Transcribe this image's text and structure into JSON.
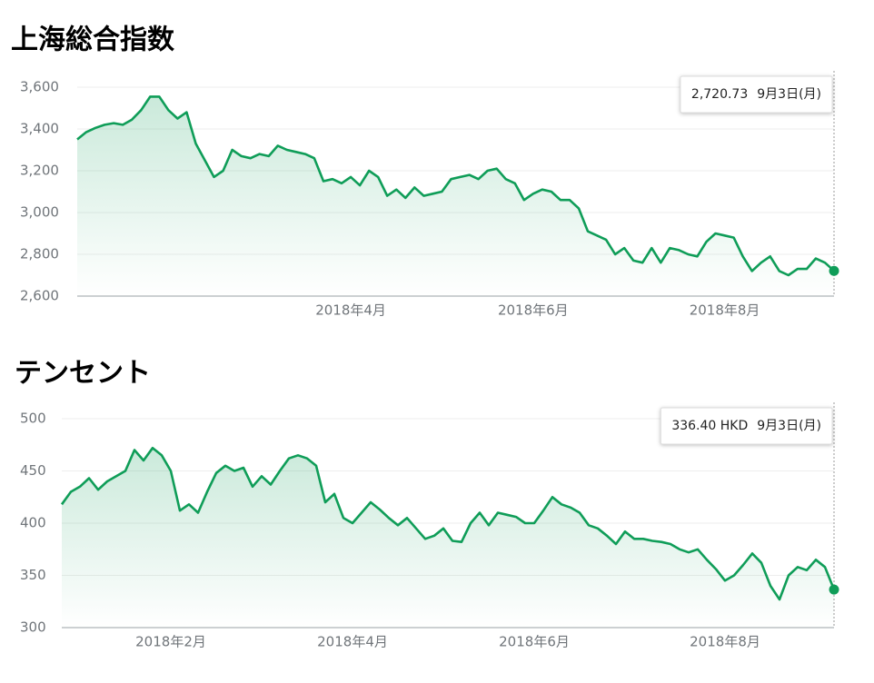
{
  "chart_data": [
    {
      "type": "line",
      "title": "上海総合指数",
      "color": "#0f9d58",
      "grid": true,
      "categories": [
        null,
        null,
        null,
        null,
        null,
        null,
        null,
        null,
        null,
        null,
        null,
        null,
        null,
        null,
        null,
        null,
        null,
        null,
        null,
        null,
        null,
        null,
        null,
        null,
        null,
        null,
        null,
        null,
        null,
        null,
        "2018年4月",
        null,
        null,
        null,
        null,
        null,
        null,
        null,
        null,
        null,
        null,
        null,
        null,
        null,
        null,
        null,
        null,
        null,
        null,
        null,
        "2018年6月",
        null,
        null,
        null,
        null,
        null,
        null,
        null,
        null,
        null,
        null,
        null,
        null,
        null,
        null,
        null,
        null,
        null,
        null,
        null,
        null,
        "2018年8月",
        null,
        null,
        null,
        null,
        null,
        null,
        null,
        null,
        null,
        null,
        null,
        null
      ],
      "values": [
        3350,
        3385,
        3405,
        3420,
        3428,
        3420,
        3445,
        3490,
        3555,
        3555,
        3490,
        3450,
        3480,
        3330,
        3250,
        3170,
        3200,
        3300,
        3270,
        3260,
        3280,
        3270,
        3320,
        3300,
        3290,
        3280,
        3260,
        3150,
        3160,
        3140,
        3170,
        3130,
        3200,
        3170,
        3080,
        3110,
        3070,
        3120,
        3080,
        3090,
        3100,
        3160,
        3170,
        3180,
        3160,
        3200,
        3210,
        3160,
        3140,
        3060,
        3090,
        3110,
        3100,
        3060,
        3060,
        3020,
        2910,
        2890,
        2870,
        2800,
        2830,
        2770,
        2760,
        2830,
        2760,
        2830,
        2820,
        2800,
        2790,
        2860,
        2900,
        2890,
        2880,
        2790,
        2720,
        2760,
        2790,
        2720,
        2700,
        2730,
        2730,
        2780,
        2760,
        2720.73
      ],
      "ylim": [
        2600,
        3600
      ],
      "yticks": [
        {
          "value": 2600,
          "label": "2,600"
        },
        {
          "value": 2800,
          "label": "2,800"
        },
        {
          "value": 3000,
          "label": "3,000"
        },
        {
          "value": 3200,
          "label": "3,200"
        },
        {
          "value": 3400,
          "label": "3,400"
        },
        {
          "value": 3600,
          "label": "3,600"
        }
      ],
      "annotations": [
        {
          "text": "2,720.73",
          "date": "9月3日(月)"
        }
      ]
    },
    {
      "type": "line",
      "title": "テンセント",
      "color": "#0f9d58",
      "grid": true,
      "categories": [
        null,
        null,
        null,
        null,
        null,
        null,
        null,
        null,
        null,
        null,
        null,
        null,
        "2018年2月",
        null,
        null,
        null,
        null,
        null,
        null,
        null,
        null,
        null,
        null,
        null,
        null,
        null,
        null,
        null,
        null,
        null,
        null,
        null,
        "2018年4月",
        null,
        null,
        null,
        null,
        null,
        null,
        null,
        null,
        null,
        null,
        null,
        null,
        null,
        null,
        null,
        null,
        null,
        null,
        null,
        "2018年6月",
        null,
        null,
        null,
        null,
        null,
        null,
        null,
        null,
        null,
        null,
        null,
        null,
        null,
        null,
        null,
        null,
        null,
        null,
        null,
        null,
        "2018年8月",
        null,
        null,
        null,
        null,
        null,
        null,
        null,
        null,
        null,
        null,
        null,
        null
      ],
      "values": [
        418,
        430,
        435,
        443,
        432,
        440,
        445,
        450,
        470,
        460,
        472,
        465,
        450,
        412,
        418,
        410,
        430,
        448,
        455,
        450,
        453,
        435,
        445,
        437,
        450,
        462,
        465,
        462,
        455,
        420,
        428,
        405,
        400,
        410,
        420,
        413,
        405,
        398,
        405,
        395,
        385,
        388,
        395,
        383,
        382,
        400,
        410,
        398,
        410,
        408,
        406,
        400,
        400,
        412,
        425,
        418,
        415,
        410,
        398,
        395,
        388,
        380,
        392,
        385,
        385,
        383,
        382,
        380,
        375,
        372,
        375,
        365,
        356,
        345,
        350,
        360,
        371,
        362,
        340,
        327,
        350,
        358,
        355,
        365,
        358,
        336.4
      ],
      "ylim": [
        300,
        500
      ],
      "yticks": [
        300,
        350,
        400,
        450,
        500
      ],
      "annotations": [
        {
          "text": "336.40 HKD",
          "date": "9月3日(月)"
        }
      ]
    }
  ]
}
